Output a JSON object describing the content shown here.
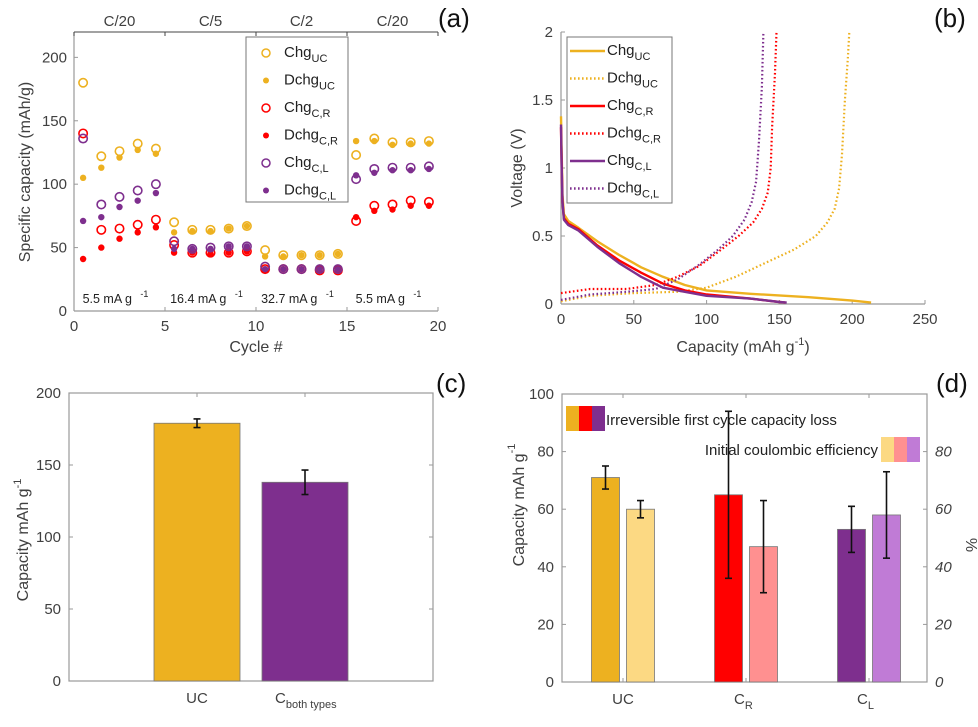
{
  "colors": {
    "uc": "#EDB120",
    "cr": "#FF0000",
    "cl": "#7E2F8E",
    "uc_light": "#FCD983",
    "cr_light": "#FF9090",
    "cl_light": "#C07BD6",
    "axis": "#999999",
    "text": "#404040"
  },
  "chart_data": [
    {
      "id": "a",
      "panel_label": "(a)",
      "type": "scatter",
      "xlabel": "Cycle #",
      "ylabel": "Specific capacity (mAh/g)",
      "xlim": [
        0,
        20
      ],
      "ylim": [
        0,
        220
      ],
      "xticks": [
        0,
        5,
        10,
        15,
        20
      ],
      "yticks": [
        0,
        50,
        100,
        150,
        200
      ],
      "top_labels": [
        {
          "text": "C/20",
          "range": [
            0,
            5
          ]
        },
        {
          "text": "C/5",
          "range": [
            5,
            10
          ]
        },
        {
          "text": "C/2",
          "range": [
            10,
            15
          ]
        },
        {
          "text": "C/20",
          "range": [
            15,
            20
          ]
        }
      ],
      "rate_labels": [
        {
          "text": "5.5 mA g",
          "sup": "-1",
          "range": [
            0,
            5
          ]
        },
        {
          "text": "16.4 mA g",
          "sup": "-1",
          "range": [
            5,
            10
          ]
        },
        {
          "text": "32.7 mA g",
          "sup": "-1",
          "range": [
            10,
            15
          ]
        },
        {
          "text": "5.5 mA g",
          "sup": "-1",
          "range": [
            15,
            20
          ]
        }
      ],
      "legend_placement": "top-center",
      "x": [
        0.5,
        1.5,
        2.5,
        3.5,
        4.5,
        5.5,
        6.5,
        7.5,
        8.5,
        9.5,
        10.5,
        11.5,
        12.5,
        13.5,
        14.5,
        15.5,
        16.5,
        17.5,
        18.5,
        19.5
      ],
      "series": [
        {
          "name": "Chg",
          "sub": "UC",
          "color_key": "uc",
          "marker": "open",
          "values": [
            180,
            122,
            126,
            132,
            128,
            70,
            64,
            64,
            65,
            67,
            48,
            44,
            44,
            44,
            45,
            123,
            136,
            133,
            133,
            134
          ]
        },
        {
          "name": "Dchg",
          "sub": "UC",
          "color_key": "uc",
          "marker": "filled",
          "values": [
            105,
            113,
            121,
            127,
            124,
            62,
            63,
            63,
            65,
            67,
            43,
            43,
            44,
            44,
            45,
            134,
            134,
            131,
            132,
            132
          ]
        },
        {
          "name": "Chg",
          "sub": "C,R",
          "color_key": "cr",
          "marker": "open",
          "values": [
            140,
            64,
            65,
            68,
            72,
            52,
            46,
            46,
            46,
            47,
            33,
            33,
            33,
            32,
            32,
            71,
            83,
            84,
            87,
            86
          ]
        },
        {
          "name": "Dchg",
          "sub": "C,R",
          "color_key": "cr",
          "marker": "filled",
          "values": [
            41,
            50,
            57,
            62,
            66,
            46,
            46,
            45,
            46,
            47,
            32,
            33,
            33,
            32,
            32,
            74,
            79,
            80,
            83,
            83
          ]
        },
        {
          "name": "Chg",
          "sub": "C,L",
          "color_key": "cl",
          "marker": "open",
          "values": [
            136,
            84,
            90,
            95,
            100,
            55,
            49,
            50,
            51,
            51,
            35,
            33,
            33,
            33,
            33,
            104,
            112,
            113,
            113,
            114
          ]
        },
        {
          "name": "Dchg",
          "sub": "C,L",
          "color_key": "cl",
          "marker": "filled",
          "values": [
            71,
            74,
            82,
            87,
            93,
            49,
            49,
            49,
            51,
            51,
            33,
            33,
            33,
            33,
            33,
            107,
            109,
            111,
            111,
            112
          ]
        }
      ]
    },
    {
      "id": "b",
      "panel_label": "(b)",
      "type": "line",
      "xlabel": "Capacity (mAh g",
      "xlabel_sup": "-1",
      "xlabel_end": ")",
      "ylabel": "Voltage (V)",
      "xlim": [
        0,
        250
      ],
      "ylim": [
        0,
        2
      ],
      "xticks": [
        0,
        50,
        100,
        150,
        200,
        250
      ],
      "yticks": [
        0,
        0.5,
        1,
        1.5,
        2
      ],
      "ytick_labels": [
        "0",
        "0.5",
        "1",
        "1.5",
        "2"
      ],
      "legend_placement": "top-left",
      "series": [
        {
          "name": "Chg",
          "sub": "UC",
          "color_key": "uc",
          "style": "solid",
          "points": [
            [
              0,
              1.38
            ],
            [
              0.5,
              1.1
            ],
            [
              1,
              0.8
            ],
            [
              2,
              0.66
            ],
            [
              5,
              0.61
            ],
            [
              12,
              0.56
            ],
            [
              25,
              0.46
            ],
            [
              40,
              0.36
            ],
            [
              55,
              0.27
            ],
            [
              70,
              0.2
            ],
            [
              85,
              0.14
            ],
            [
              100,
              0.1
            ],
            [
              130,
              0.075
            ],
            [
              170,
              0.05
            ],
            [
              200,
              0.025
            ],
            [
              213,
              0.01
            ]
          ]
        },
        {
          "name": "Dchg",
          "sub": "UC",
          "color_key": "uc",
          "style": "dotted",
          "points": [
            [
              0,
              0.02
            ],
            [
              20,
              0.06
            ],
            [
              50,
              0.08
            ],
            [
              80,
              0.09
            ],
            [
              100,
              0.12
            ],
            [
              120,
              0.2
            ],
            [
              140,
              0.3
            ],
            [
              160,
              0.4
            ],
            [
              175,
              0.5
            ],
            [
              183,
              0.6
            ],
            [
              188,
              0.7
            ],
            [
              191,
              0.85
            ],
            [
              193,
              1.1
            ],
            [
              195,
              1.5
            ],
            [
              197,
              1.8
            ],
            [
              198,
              2.0
            ]
          ]
        },
        {
          "name": "Chg",
          "sub": "C,R",
          "color_key": "cr",
          "style": "solid",
          "points": [
            [
              0,
              1.3
            ],
            [
              0.5,
              1.0
            ],
            [
              1,
              0.75
            ],
            [
              2,
              0.63
            ],
            [
              5,
              0.59
            ],
            [
              12,
              0.55
            ],
            [
              25,
              0.43
            ],
            [
              40,
              0.32
            ],
            [
              55,
              0.23
            ],
            [
              70,
              0.15
            ],
            [
              85,
              0.1
            ],
            [
              100,
              0.07
            ],
            [
              130,
              0.04
            ],
            [
              150,
              0.015
            ],
            [
              154,
              0.01
            ]
          ]
        },
        {
          "name": "Dchg",
          "sub": "C,R",
          "color_key": "cr",
          "style": "dotted",
          "points": [
            [
              0,
              0.08
            ],
            [
              20,
              0.11
            ],
            [
              45,
              0.11
            ],
            [
              65,
              0.14
            ],
            [
              80,
              0.2
            ],
            [
              95,
              0.28
            ],
            [
              110,
              0.4
            ],
            [
              122,
              0.5
            ],
            [
              132,
              0.6
            ],
            [
              138,
              0.7
            ],
            [
              142,
              0.82
            ],
            [
              144,
              1.0
            ],
            [
              145,
              1.3
            ],
            [
              147,
              1.7
            ],
            [
              148,
              2.0
            ]
          ]
        },
        {
          "name": "Chg",
          "sub": "C,L",
          "color_key": "cl",
          "style": "solid",
          "points": [
            [
              0,
              1.32
            ],
            [
              0.5,
              1.0
            ],
            [
              1,
              0.75
            ],
            [
              2,
              0.62
            ],
            [
              5,
              0.58
            ],
            [
              12,
              0.54
            ],
            [
              25,
              0.42
            ],
            [
              40,
              0.3
            ],
            [
              55,
              0.2
            ],
            [
              70,
              0.12
            ],
            [
              85,
              0.09
            ],
            [
              100,
              0.06
            ],
            [
              130,
              0.04
            ],
            [
              150,
              0.015
            ],
            [
              155,
              0.01
            ]
          ]
        },
        {
          "name": "Dchg",
          "sub": "C,L",
          "color_key": "cl",
          "style": "dotted",
          "points": [
            [
              0,
              0.03
            ],
            [
              20,
              0.07
            ],
            [
              45,
              0.09
            ],
            [
              65,
              0.11
            ],
            [
              80,
              0.18
            ],
            [
              95,
              0.29
            ],
            [
              108,
              0.4
            ],
            [
              118,
              0.5
            ],
            [
              126,
              0.62
            ],
            [
              131,
              0.75
            ],
            [
              134,
              0.9
            ],
            [
              136,
              1.2
            ],
            [
              138,
              1.6
            ],
            [
              139,
              2.0
            ]
          ]
        }
      ]
    },
    {
      "id": "c",
      "panel_label": "(c)",
      "type": "bar",
      "ylabel": "Capacity mAh g",
      "ylabel_sup": "-1",
      "ylim": [
        0,
        200
      ],
      "yticks": [
        0,
        50,
        100,
        150,
        200
      ],
      "categories": [
        {
          "main": "UC",
          "sub": ""
        },
        {
          "main": "C",
          "sub": "both types"
        }
      ],
      "values": [
        179,
        138
      ],
      "errors": [
        3,
        8.5
      ],
      "color_keys": [
        "uc",
        "cl"
      ]
    },
    {
      "id": "d",
      "panel_label": "(d)",
      "type": "bar",
      "ylabel": "Capacity mAh g",
      "ylabel_sup": "-1",
      "y2label": "%",
      "ylim": [
        0,
        100
      ],
      "y2lim": [
        0,
        100
      ],
      "yticks": [
        0,
        20,
        40,
        60,
        80,
        100
      ],
      "y2ticks": [
        0,
        20,
        40,
        60,
        80
      ],
      "categories": [
        {
          "main": "UC",
          "sub": ""
        },
        {
          "main": "C",
          "sub": "R"
        },
        {
          "main": "C",
          "sub": "L"
        }
      ],
      "series": [
        {
          "name": "Irreversible first cycle capacity loss",
          "axis": "left",
          "color_keys": [
            "uc",
            "cr",
            "cl"
          ],
          "values": [
            71,
            65,
            53
          ],
          "err_low": [
            67,
            36,
            45
          ],
          "err_high": [
            75,
            94,
            61
          ]
        },
        {
          "name": "Initial coulombic efficiency",
          "axis": "right",
          "color_keys": [
            "uc_light",
            "cr_light",
            "cl_light"
          ],
          "values": [
            60,
            47,
            58
          ],
          "err_low": [
            57,
            31,
            43
          ],
          "err_high": [
            63,
            63,
            73
          ]
        }
      ]
    }
  ]
}
